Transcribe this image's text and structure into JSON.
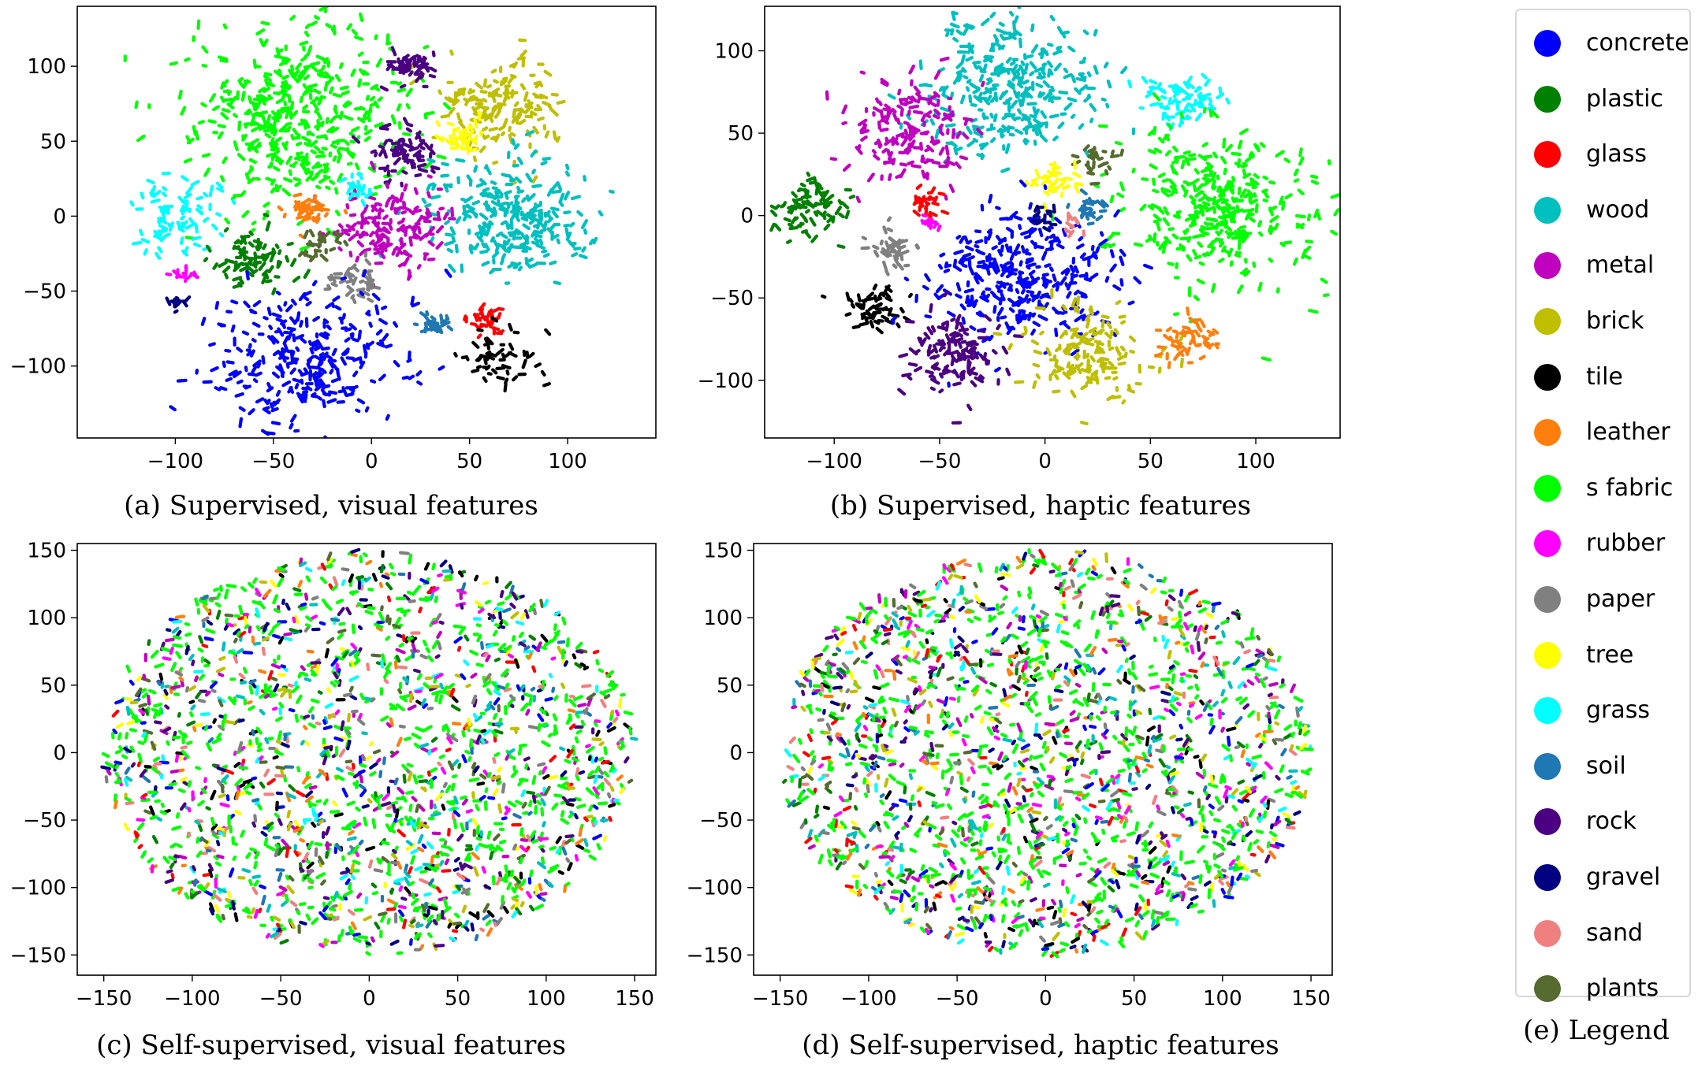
{
  "colors": {
    "concrete": "#0000ff",
    "plastic": "#008000",
    "glass": "#ff0000",
    "wood": "#00bfbf",
    "metal": "#bf00bf",
    "brick": "#bfbf00",
    "tile": "#000000",
    "leather": "#ff7f0e",
    "s fabric": "#00ff00",
    "rubber": "#ff00ff",
    "paper": "#808080",
    "tree": "#ffff00",
    "grass": "#00ffff",
    "soil": "#1f77b4",
    "rock": "#4b0082",
    "gravel": "#000080",
    "sand": "#f08080",
    "plants": "#556b2f"
  },
  "legend": {
    "caption": "(e) Legend",
    "items": [
      "concrete",
      "plastic",
      "glass",
      "wood",
      "metal",
      "brick",
      "tile",
      "leather",
      "s fabric",
      "rubber",
      "paper",
      "tree",
      "grass",
      "soil",
      "rock",
      "gravel",
      "sand",
      "plants"
    ]
  },
  "chart_data": [
    {
      "type": "scatter",
      "panel": "a",
      "caption": "(a) Supervised, visual features",
      "xlim": [
        -150,
        145
      ],
      "ylim": [
        -148,
        140
      ],
      "xticks": [
        -100,
        -50,
        0,
        50,
        100
      ],
      "yticks": [
        -100,
        -50,
        0,
        50,
        100
      ],
      "xtick_labels": [
        "−100",
        "−50",
        "0",
        "50",
        "100"
      ],
      "ytick_labels": [
        "−100",
        "−50",
        "0",
        "50",
        "100"
      ],
      "layout": "clustered",
      "clusters": [
        {
          "label": "s fabric",
          "x": -35,
          "y": 65,
          "spread": 40,
          "n": 420
        },
        {
          "label": "brick",
          "x": 68,
          "y": 75,
          "spread": 22,
          "n": 150
        },
        {
          "label": "rock",
          "x": 22,
          "y": 100,
          "spread": 9,
          "n": 50
        },
        {
          "label": "rock",
          "x": 18,
          "y": 42,
          "spread": 12,
          "n": 70
        },
        {
          "label": "tree",
          "x": 47,
          "y": 52,
          "spread": 8,
          "n": 40
        },
        {
          "label": "wood",
          "x": 72,
          "y": 0,
          "spread": 30,
          "n": 260
        },
        {
          "label": "metal",
          "x": 10,
          "y": -8,
          "spread": 20,
          "n": 150
        },
        {
          "label": "grass",
          "x": -100,
          "y": 0,
          "spread": 16,
          "n": 80
        },
        {
          "label": "grass",
          "x": -8,
          "y": 18,
          "spread": 5,
          "n": 20
        },
        {
          "label": "leather",
          "x": -32,
          "y": 5,
          "spread": 8,
          "n": 40
        },
        {
          "label": "plastic",
          "x": -60,
          "y": -28,
          "spread": 13,
          "n": 80
        },
        {
          "label": "plants",
          "x": -25,
          "y": -20,
          "spread": 7,
          "n": 25
        },
        {
          "label": "paper",
          "x": -8,
          "y": -45,
          "spread": 9,
          "n": 40
        },
        {
          "label": "concrete",
          "x": -35,
          "y": -95,
          "spread": 33,
          "n": 280
        },
        {
          "label": "soil",
          "x": 33,
          "y": -72,
          "spread": 7,
          "n": 30
        },
        {
          "label": "glass",
          "x": 58,
          "y": -68,
          "spread": 7,
          "n": 30
        },
        {
          "label": "tile",
          "x": 65,
          "y": -95,
          "spread": 14,
          "n": 50
        },
        {
          "label": "rubber",
          "x": -95,
          "y": -38,
          "spread": 4,
          "n": 12
        },
        {
          "label": "gravel",
          "x": -98,
          "y": -58,
          "spread": 4,
          "n": 10
        }
      ]
    },
    {
      "type": "scatter",
      "panel": "b",
      "caption": "(b) Supervised, haptic features",
      "xlim": [
        -133,
        140
      ],
      "ylim": [
        -135,
        127
      ],
      "xticks": [
        -100,
        -50,
        0,
        50,
        100
      ],
      "yticks": [
        -100,
        -50,
        0,
        50,
        100
      ],
      "xtick_labels": [
        "−100",
        "−50",
        "0",
        "50",
        "100"
      ],
      "ytick_labels": [
        "−100",
        "−50",
        "0",
        "50",
        "100"
      ],
      "layout": "clustered",
      "clusters": [
        {
          "label": "wood",
          "x": -15,
          "y": 75,
          "spread": 30,
          "n": 300
        },
        {
          "label": "metal",
          "x": -65,
          "y": 52,
          "spread": 20,
          "n": 160
        },
        {
          "label": "grass",
          "x": 65,
          "y": 70,
          "spread": 12,
          "n": 70
        },
        {
          "label": "s fabric",
          "x": 80,
          "y": 5,
          "spread": 32,
          "n": 330
        },
        {
          "label": "plants",
          "x": 25,
          "y": 35,
          "spread": 7,
          "n": 25
        },
        {
          "label": "tree",
          "x": 5,
          "y": 20,
          "spread": 8,
          "n": 35
        },
        {
          "label": "soil",
          "x": 20,
          "y": 5,
          "spread": 6,
          "n": 25
        },
        {
          "label": "plastic",
          "x": -110,
          "y": 5,
          "spread": 13,
          "n": 80
        },
        {
          "label": "paper",
          "x": -75,
          "y": -20,
          "spread": 9,
          "n": 40
        },
        {
          "label": "tile",
          "x": -80,
          "y": -55,
          "spread": 10,
          "n": 50
        },
        {
          "label": "concrete",
          "x": -10,
          "y": -40,
          "spread": 30,
          "n": 300
        },
        {
          "label": "rock",
          "x": -45,
          "y": -85,
          "spread": 18,
          "n": 120
        },
        {
          "label": "brick",
          "x": 20,
          "y": -85,
          "spread": 20,
          "n": 140
        },
        {
          "label": "leather",
          "x": 68,
          "y": -75,
          "spread": 10,
          "n": 50
        },
        {
          "label": "glass",
          "x": -55,
          "y": 8,
          "spread": 6,
          "n": 25
        },
        {
          "label": "rubber",
          "x": -55,
          "y": -5,
          "spread": 4,
          "n": 12
        },
        {
          "label": "gravel",
          "x": 0,
          "y": 0,
          "spread": 5,
          "n": 15
        },
        {
          "label": "sand",
          "x": 12,
          "y": -5,
          "spread": 5,
          "n": 10
        }
      ]
    },
    {
      "type": "scatter",
      "panel": "c",
      "caption": "(c) Self-supervised, visual features",
      "xlim": [
        -165,
        162
      ],
      "ylim": [
        -165,
        155
      ],
      "xticks": [
        -150,
        -100,
        -50,
        0,
        50,
        100,
        150
      ],
      "yticks": [
        -150,
        -100,
        -50,
        0,
        50,
        100,
        150
      ],
      "xtick_labels": [
        "−150",
        "−100",
        "−50",
        "0",
        "50",
        "100",
        "150"
      ],
      "ytick_labels": [
        "−150",
        "−100",
        "−50",
        "0",
        "50",
        "100",
        "150"
      ],
      "layout": "diffuse",
      "radius": [
        150,
        150
      ],
      "n": 1900
    },
    {
      "type": "scatter",
      "panel": "d",
      "caption": "(d) Self-supervised, haptic features",
      "xlim": [
        -165,
        162
      ],
      "ylim": [
        -165,
        155
      ],
      "xticks": [
        -150,
        -100,
        -50,
        0,
        50,
        100,
        150
      ],
      "yticks": [
        -150,
        -100,
        -50,
        0,
        50,
        100,
        150
      ],
      "xtick_labels": [
        "−150",
        "−100",
        "−50",
        "0",
        "50",
        "100",
        "150"
      ],
      "ytick_labels": [
        "−150",
        "−100",
        "−50",
        "0",
        "50",
        "100",
        "150"
      ],
      "layout": "diffuse",
      "radius": [
        150,
        150
      ],
      "n": 1900
    }
  ]
}
